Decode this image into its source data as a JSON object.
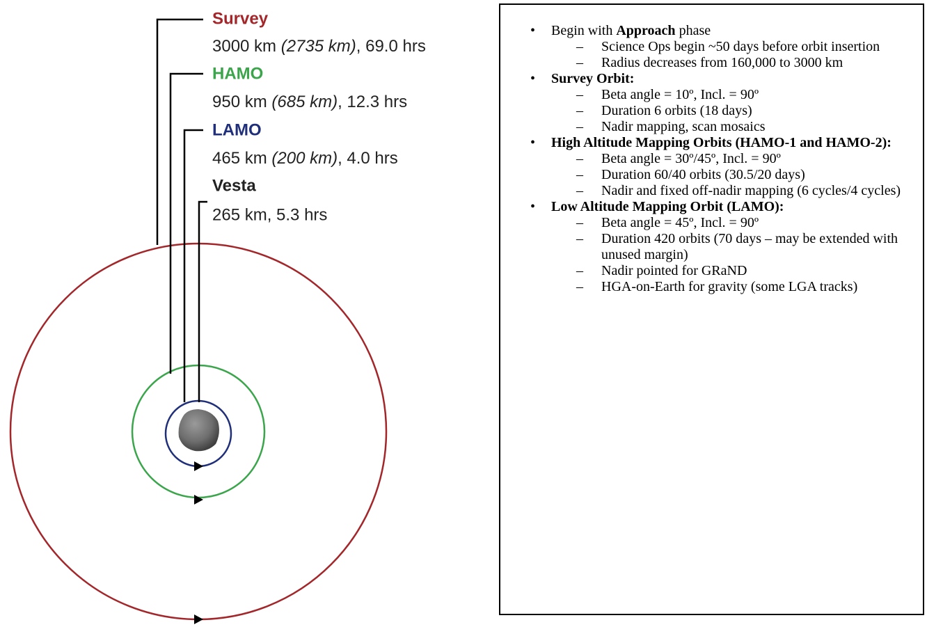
{
  "orbits": [
    {
      "name": "Survey",
      "distance": "3000 km ",
      "altitude": "(2735 km)",
      "period": ", 69.0 hrs",
      "color": "#a3262a"
    },
    {
      "name": "HAMO",
      "distance": "950 km ",
      "altitude": "(685 km)",
      "period": ", 12.3 hrs",
      "color": "#3aa54a"
    },
    {
      "name": "LAMO",
      "distance": "465 km ",
      "altitude": "(200 km)",
      "period": ", 4.0 hrs",
      "color": "#1f2f7a"
    }
  ],
  "body": {
    "name": "Vesta",
    "detail": "265 km, 5.3 hrs"
  },
  "notes": [
    {
      "parts": [
        {
          "t": "Begin with "
        },
        {
          "b": "Approach"
        },
        {
          "t": " phase"
        }
      ],
      "sub": [
        "Science Ops begin ~50 days before orbit insertion",
        "Radius decreases from 160,000 to 3000 km"
      ]
    },
    {
      "parts": [
        {
          "b": "Survey Orbit:"
        }
      ],
      "sub": [
        "Beta angle = 10º, Incl. = 90º",
        "Duration 6 orbits (18 days)",
        "Nadir mapping, scan mosaics"
      ]
    },
    {
      "parts": [
        {
          "b": "High Altitude Mapping Orbits (HAMO-1 and HAMO-2):"
        }
      ],
      "sub": [
        "Beta angle = 30º/45º, Incl. = 90º",
        "Duration 60/40 orbits (30.5/20 days)",
        "Nadir and fixed off-nadir mapping (6 cycles/4 cycles)"
      ]
    },
    {
      "parts": [
        {
          "b": "Low Altitude Mapping Orbit (LAMO):"
        }
      ],
      "sub": [
        "Beta angle = 45º, Incl. = 90º",
        "Duration 420 orbits (70 days – may be extended with unused margin)",
        "Nadir pointed for GRaND",
        "HGA-on-Earth for gravity (some LGA tracks)"
      ]
    }
  ]
}
